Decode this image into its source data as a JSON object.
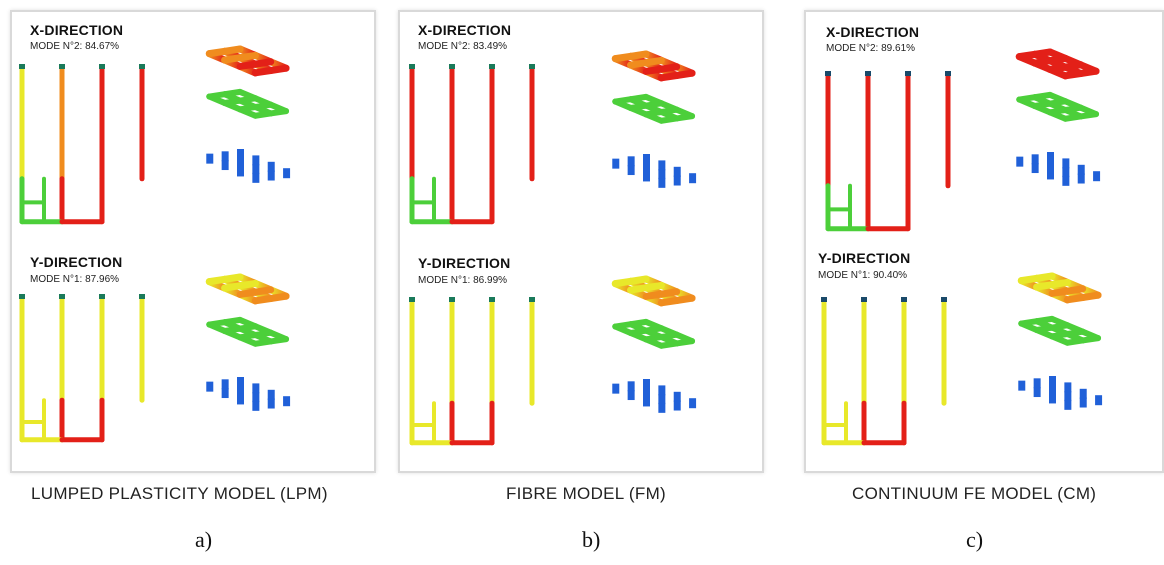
{
  "panels": [
    {
      "x_label": "X-DIRECTION",
      "x_mode": "MODE N°2: 84.67%",
      "y_label": "Y-DIRECTION",
      "y_mode": "MODE N°1: 87.96%",
      "caption": "LUMPED PLASTICITY MODEL (LPM)",
      "sublabel": "a)"
    },
    {
      "x_label": "X-DIRECTION",
      "x_mode": "MODE N°2: 83.49%",
      "y_label": "Y-DIRECTION",
      "y_mode": "MODE N°1: 86.99%",
      "caption": "FIBRE MODEL (FM)",
      "sublabel": "b)"
    },
    {
      "x_label": "X-DIRECTION",
      "x_mode": "MODE N°2: 89.61%",
      "y_label": "Y-DIRECTION",
      "y_mode": "MODE N°1: 90.40%",
      "caption": "CONTINUUM FE MODEL (CM)",
      "sublabel": "c)"
    }
  ],
  "colors": {
    "high": "#e32018",
    "mid": "#f08c1e",
    "yellow": "#e8e82a",
    "green": "#4ccf3a",
    "blue": "#2060d8"
  }
}
